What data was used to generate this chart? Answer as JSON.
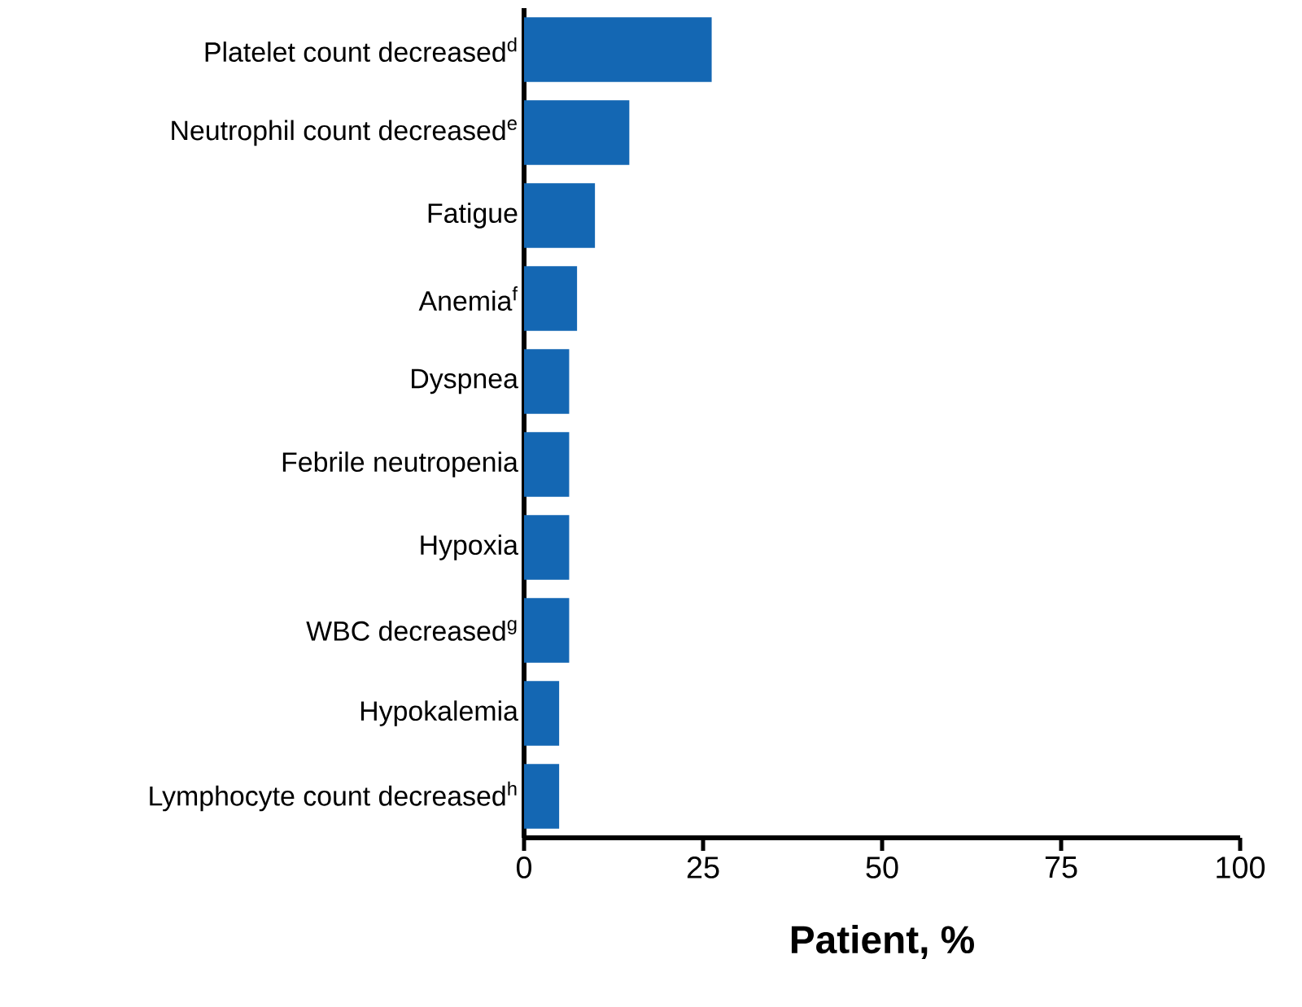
{
  "chart_data": {
    "type": "bar",
    "orientation": "horizontal",
    "xlabel": "Patient, %",
    "categories": [
      "Platelet count decreased$^{d}$",
      "Neutrophil count decreased$^{e}$",
      "Fatigue",
      "Anemia$^{f}$",
      "Dyspnea",
      "Febrile neutropenia",
      "Hypoxia",
      "WBC decreased$^{g}$",
      "Hypokalemia",
      "Lymphocyte count decreased$^{h}$"
    ],
    "values": [
      26.2,
      14.7,
      9.9,
      7.4,
      6.3,
      6.3,
      6.3,
      6.3,
      4.9,
      4.9
    ],
    "color": "#1467b3",
    "xlim": [
      0,
      100
    ],
    "xticks": [
      0,
      25,
      50,
      75,
      100
    ]
  }
}
